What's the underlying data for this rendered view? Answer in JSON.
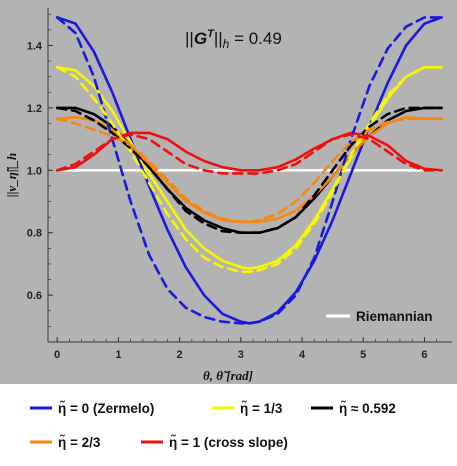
{
  "chart_data": {
    "type": "line",
    "annotation": "||G^T||_h = 0.49",
    "xlabel": "θ, θ̃  [rad]",
    "ylabel": "||v_η̃||_h",
    "xlim": [
      -0.15,
      6.45
    ],
    "ylim": [
      0.45,
      1.52
    ],
    "xticks": [
      0,
      1,
      2,
      3,
      4,
      5,
      6
    ],
    "yticks": [
      0.6,
      0.8,
      1.0,
      1.2,
      1.4
    ],
    "ytick_labels": [
      "0.6",
      "0.8",
      "1.0",
      "1.2",
      "1.4"
    ],
    "grid": false,
    "background": "#b3b3b3",
    "series": [
      {
        "name": "η̃ = 0 (Zermelo)",
        "color": "#1a1adb",
        "dashed": false,
        "x": [
          0,
          0.3,
          0.6,
          0.9,
          1.2,
          1.5,
          1.8,
          2.1,
          2.4,
          2.7,
          3.0,
          3.14,
          3.3,
          3.6,
          3.9,
          4.2,
          4.5,
          4.8,
          5.1,
          5.4,
          5.7,
          6.0,
          6.28
        ],
        "y": [
          1.49,
          1.47,
          1.38,
          1.25,
          1.1,
          0.95,
          0.81,
          0.69,
          0.6,
          0.54,
          0.515,
          0.51,
          0.515,
          0.545,
          0.61,
          0.71,
          0.84,
          0.99,
          1.14,
          1.28,
          1.4,
          1.47,
          1.49
        ]
      },
      {
        "name": "η̃ = 0 (Zermelo) dual",
        "color": "#1a1adb",
        "dashed": true,
        "x": [
          0,
          0.3,
          0.6,
          0.9,
          1.2,
          1.5,
          1.8,
          2.1,
          2.4,
          2.7,
          3.0,
          3.14,
          3.3,
          3.6,
          3.9,
          4.2,
          4.5,
          4.8,
          5.1,
          5.4,
          5.7,
          6.0,
          6.28
        ],
        "y": [
          1.49,
          1.44,
          1.3,
          1.1,
          0.9,
          0.73,
          0.62,
          0.56,
          0.53,
          0.515,
          0.51,
          0.51,
          0.515,
          0.54,
          0.6,
          0.72,
          0.9,
          1.1,
          1.27,
          1.39,
          1.46,
          1.49,
          1.49
        ]
      },
      {
        "name": "η̃ = 1/3",
        "color": "#f7f700",
        "dashed": false,
        "x": [
          0,
          0.3,
          0.6,
          0.9,
          1.2,
          1.5,
          1.8,
          2.1,
          2.4,
          2.7,
          3.0,
          3.14,
          3.3,
          3.6,
          3.9,
          4.2,
          4.5,
          4.8,
          5.1,
          5.4,
          5.7,
          6.0,
          6.28
        ],
        "y": [
          1.33,
          1.32,
          1.27,
          1.19,
          1.09,
          0.99,
          0.9,
          0.81,
          0.75,
          0.71,
          0.69,
          0.685,
          0.69,
          0.71,
          0.76,
          0.84,
          0.94,
          1.04,
          1.14,
          1.23,
          1.3,
          1.33,
          1.33
        ]
      },
      {
        "name": "η̃ = 1/3 dual",
        "color": "#f7f700",
        "dashed": true,
        "x": [
          0,
          0.3,
          0.6,
          0.9,
          1.2,
          1.5,
          1.8,
          2.1,
          2.4,
          2.7,
          3.0,
          3.14,
          3.3,
          3.6,
          3.9,
          4.2,
          4.5,
          4.8,
          5.1,
          5.4,
          5.7,
          6.0,
          6.28
        ],
        "y": [
          1.33,
          1.3,
          1.23,
          1.15,
          1.06,
          0.96,
          0.86,
          0.78,
          0.72,
          0.69,
          0.675,
          0.675,
          0.68,
          0.7,
          0.75,
          0.83,
          0.93,
          1.05,
          1.15,
          1.24,
          1.3,
          1.33,
          1.33
        ]
      },
      {
        "name": "η̃ ≈ 0.592",
        "color": "#000000",
        "dashed": false,
        "x": [
          0,
          0.3,
          0.6,
          0.9,
          1.2,
          1.5,
          1.8,
          2.1,
          2.4,
          2.7,
          3.0,
          3.14,
          3.3,
          3.6,
          3.9,
          4.2,
          4.5,
          4.8,
          5.1,
          5.4,
          5.7,
          6.0,
          6.28
        ],
        "y": [
          1.2,
          1.2,
          1.18,
          1.14,
          1.08,
          1.01,
          0.94,
          0.88,
          0.84,
          0.815,
          0.8,
          0.8,
          0.8,
          0.815,
          0.85,
          0.91,
          0.98,
          1.05,
          1.11,
          1.16,
          1.19,
          1.2,
          1.2
        ]
      },
      {
        "name": "η̃ ≈ 0.592 dual",
        "color": "#000000",
        "dashed": true,
        "x": [
          0,
          0.3,
          0.6,
          0.9,
          1.2,
          1.5,
          1.8,
          2.1,
          2.4,
          2.7,
          3.0,
          3.14,
          3.3,
          3.6,
          3.9,
          4.2,
          4.5,
          4.8,
          5.1,
          5.4,
          5.7,
          6.0,
          6.28
        ],
        "y": [
          1.2,
          1.19,
          1.16,
          1.12,
          1.07,
          1.01,
          0.94,
          0.87,
          0.83,
          0.805,
          0.8,
          0.8,
          0.8,
          0.815,
          0.85,
          0.92,
          1.0,
          1.08,
          1.14,
          1.18,
          1.2,
          1.2,
          1.2
        ]
      },
      {
        "name": "η̃ = 2/3",
        "color": "#f7870f",
        "dashed": false,
        "x": [
          0,
          0.3,
          0.6,
          0.9,
          1.2,
          1.5,
          1.8,
          2.1,
          2.4,
          2.7,
          3.0,
          3.14,
          3.3,
          3.6,
          3.9,
          4.2,
          4.5,
          4.8,
          5.1,
          5.4,
          5.7,
          6.0,
          6.28
        ],
        "y": [
          1.165,
          1.17,
          1.16,
          1.13,
          1.08,
          1.02,
          0.96,
          0.9,
          0.865,
          0.84,
          0.835,
          0.835,
          0.835,
          0.845,
          0.87,
          0.92,
          0.98,
          1.05,
          1.11,
          1.15,
          1.17,
          1.165,
          1.165
        ]
      },
      {
        "name": "η̃ = 2/3 dual",
        "color": "#f7870f",
        "dashed": true,
        "x": [
          0,
          0.3,
          0.6,
          0.9,
          1.2,
          1.5,
          1.8,
          2.1,
          2.4,
          2.7,
          3.0,
          3.14,
          3.3,
          3.6,
          3.9,
          4.2,
          4.5,
          4.8,
          5.1,
          5.4,
          5.7,
          6.0,
          6.28
        ],
        "y": [
          1.165,
          1.15,
          1.13,
          1.11,
          1.08,
          1.03,
          0.97,
          0.91,
          0.87,
          0.845,
          0.835,
          0.835,
          0.84,
          0.86,
          0.9,
          0.96,
          1.03,
          1.09,
          1.13,
          1.155,
          1.165,
          1.165,
          1.165
        ]
      },
      {
        "name": "η̃ = 1 (cross slope)",
        "color": "#ef0f0f",
        "dashed": false,
        "x": [
          0,
          0.3,
          0.6,
          0.9,
          1.2,
          1.5,
          1.8,
          2.1,
          2.4,
          2.7,
          3.0,
          3.14,
          3.3,
          3.6,
          3.9,
          4.2,
          4.5,
          4.8,
          5.1,
          5.4,
          5.7,
          6.0,
          6.28
        ],
        "y": [
          1.0,
          1.01,
          1.05,
          1.1,
          1.12,
          1.12,
          1.1,
          1.06,
          1.03,
          1.01,
          1.0,
          1.0,
          1.0,
          1.01,
          1.035,
          1.07,
          1.1,
          1.12,
          1.11,
          1.08,
          1.03,
          1.005,
          1.0
        ]
      },
      {
        "name": "η̃ = 1 (cross slope) dual",
        "color": "#ef0f0f",
        "dashed": true,
        "x": [
          0,
          0.3,
          0.6,
          0.9,
          1.2,
          1.5,
          1.8,
          2.1,
          2.4,
          2.7,
          3.0,
          3.14,
          3.3,
          3.6,
          3.9,
          4.2,
          4.5,
          4.8,
          5.1,
          5.4,
          5.7,
          6.0,
          6.28
        ],
        "y": [
          1.0,
          1.02,
          1.06,
          1.1,
          1.115,
          1.1,
          1.06,
          1.02,
          1.0,
          0.99,
          0.99,
          0.99,
          0.99,
          1.0,
          1.02,
          1.06,
          1.1,
          1.115,
          1.1,
          1.06,
          1.02,
          1.0,
          1.0
        ]
      },
      {
        "name": "Riemannian",
        "color": "#ffffff",
        "dashed": false,
        "x": [
          0,
          6.28
        ],
        "y": [
          1.0,
          1.0
        ]
      }
    ],
    "inner_legend": {
      "label": "Riemannian",
      "color": "#ffffff"
    },
    "legend": [
      {
        "label": "η̃ = 0 (Zermelo)",
        "color": "#1a1adb"
      },
      {
        "label": "η̃ = 1/3",
        "color": "#f7f700"
      },
      {
        "label": "η̃ ≈ 0.592",
        "color": "#000000"
      },
      {
        "label": "η̃ = 2/3",
        "color": "#f7870f"
      },
      {
        "label": "η̃ = 1 (cross slope)",
        "color": "#ef0f0f"
      }
    ]
  }
}
